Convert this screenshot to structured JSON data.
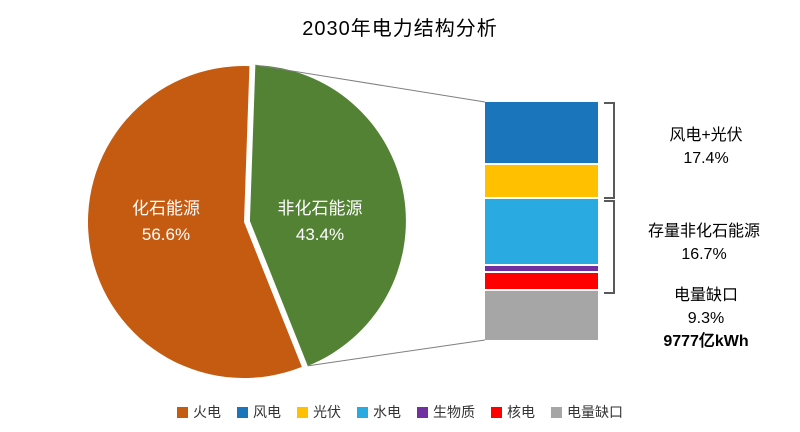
{
  "title": "2030年电力结构分析",
  "chart_data": {
    "type": "pie",
    "title": "2030年电力结构分析",
    "unit": "%",
    "note": "Bar-of-pie chart: the non-fossil slice is expanded into a stacked bar. Individual bar segment values estimated from bar heights; group totals are labeled on chart.",
    "pie": {
      "slices": [
        {
          "label": "化石能源",
          "pct": "56.6%",
          "value": 56.6,
          "color": "#C55A11"
        },
        {
          "label": "非化石能源",
          "pct": "43.4%",
          "value": 43.4,
          "color": "#548235"
        }
      ]
    },
    "breakdown": {
      "total_value": 43.4,
      "segments": [
        {
          "label": "风电",
          "value": 11.2,
          "color": "#1B75BB"
        },
        {
          "label": "光伏",
          "value": 6.2,
          "color": "#FFC000"
        },
        {
          "label": "水电",
          "value": 12.1,
          "color": "#29ABE2"
        },
        {
          "label": "生物质",
          "value": 1.3,
          "color": "#7030A0"
        },
        {
          "label": "核电",
          "value": 3.3,
          "color": "#FF0000"
        },
        {
          "label": "电量缺口",
          "value": 9.3,
          "color": "#A6A6A6"
        }
      ],
      "groups": [
        {
          "label": "风电+光伏",
          "pct": "17.4%",
          "members": [
            "风电",
            "光伏"
          ]
        },
        {
          "label": "存量非化石能源",
          "pct": "16.7%",
          "members": [
            "水电",
            "生物质",
            "核电"
          ]
        },
        {
          "label": "电量缺口",
          "pct": "9.3%",
          "extra": "9777亿kWh",
          "members": [
            "电量缺口"
          ]
        }
      ]
    },
    "legend": [
      {
        "label": "火电",
        "color": "#C55A11"
      },
      {
        "label": "风电",
        "color": "#1B75BB"
      },
      {
        "label": "光伏",
        "color": "#FFC000"
      },
      {
        "label": "水电",
        "color": "#29ABE2"
      },
      {
        "label": "生物质",
        "color": "#7030A0"
      },
      {
        "label": "核电",
        "color": "#FF0000"
      },
      {
        "label": "电量缺口",
        "color": "#A6A6A6"
      }
    ]
  }
}
